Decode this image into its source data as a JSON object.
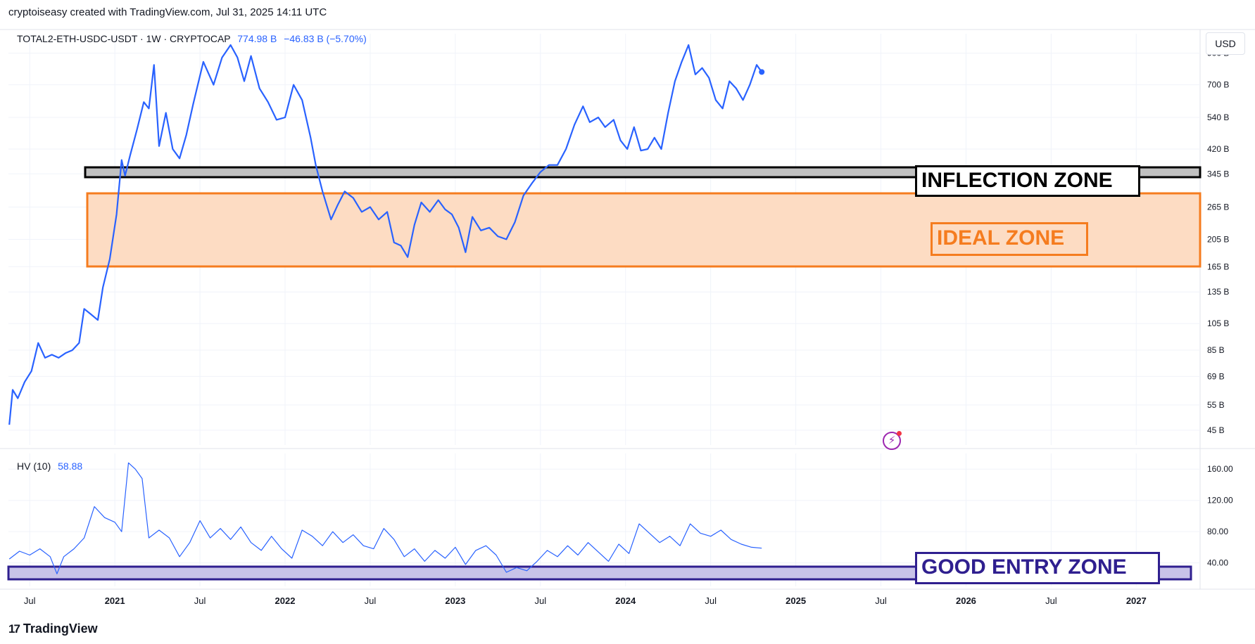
{
  "header": {
    "caption": "cryptoiseasy created with TradingView.com, Jul 31, 2025 14:11 UTC"
  },
  "toolbar": {
    "currency": "USD"
  },
  "main_legend": {
    "symbol": "TOTAL2-ETH-USDC-USDT · 1W · CRYPTOCAP",
    "price": "774.98 B",
    "change": "−46.83 B (−5.70%)"
  },
  "hv_legend": {
    "name": "HV (10)",
    "value": "58.88"
  },
  "zones": {
    "inflection": "INFLECTION ZONE",
    "ideal": "IDEAL ZONE",
    "good_entry": "GOOD ENTRY ZONE"
  },
  "footer": {
    "brand": "TradingView",
    "brand_mark": "17"
  },
  "colors": {
    "line": "#2962ff",
    "inflection_fill": "#c0c0c0",
    "inflection_border": "#000000",
    "ideal_fill": "#fddcc3",
    "ideal_border": "#f57c1f",
    "good_entry_fill": "#c8c3e8",
    "good_entry_border": "#2f1f8f",
    "snapshot_icon": "#9c27b0"
  },
  "chart_data": [
    {
      "type": "line",
      "title": "TOTAL2-ETH-USDC-USDT · 1W · CRYPTOCAP",
      "y_unit": "B",
      "y_scale": "log",
      "ylim": [
        40,
        1050
      ],
      "grid": true,
      "y_ticks": [
        900,
        700,
        540,
        420,
        345,
        265,
        205,
        165,
        135,
        105,
        85,
        69,
        55,
        45
      ],
      "y_tick_labels": [
        "900 B",
        "700 B",
        "540 B",
        "420 B",
        "345 B",
        "265 B",
        "205 B",
        "165 B",
        "135 B",
        "105 B",
        "85 B",
        "69 B",
        "55 B",
        "45 B"
      ],
      "x_ticks": [
        "Jul",
        "2021",
        "Jul",
        "2022",
        "Jul",
        "2023",
        "Jul",
        "2024",
        "Jul",
        "2025",
        "Jul",
        "2026",
        "Jul",
        "2027"
      ],
      "x_tick_dates": [
        2020.5,
        2021.0,
        2021.5,
        2022.0,
        2022.5,
        2023.0,
        2023.5,
        2024.0,
        2024.5,
        2025.0,
        2025.5,
        2026.0,
        2026.5,
        2027.0
      ],
      "xlim": [
        2020.375,
        2027.375
      ],
      "series": [
        {
          "points": [
            [
              2020.38,
              47
            ],
            [
              2020.4,
              62
            ],
            [
              2020.43,
              58
            ],
            [
              2020.47,
              66
            ],
            [
              2020.51,
              72
            ],
            [
              2020.55,
              90
            ],
            [
              2020.59,
              80
            ],
            [
              2020.63,
              82
            ],
            [
              2020.67,
              80
            ],
            [
              2020.71,
              83
            ],
            [
              2020.75,
              85
            ],
            [
              2020.79,
              90
            ],
            [
              2020.82,
              118
            ],
            [
              2020.86,
              113
            ],
            [
              2020.9,
              108
            ],
            [
              2020.93,
              140
            ],
            [
              2020.97,
              175
            ],
            [
              2021.01,
              250
            ],
            [
              2021.04,
              385
            ],
            [
              2021.06,
              340
            ],
            [
              2021.09,
              400
            ],
            [
              2021.13,
              490
            ],
            [
              2021.17,
              610
            ],
            [
              2021.2,
              580
            ],
            [
              2021.23,
              820
            ],
            [
              2021.26,
              430
            ],
            [
              2021.3,
              560
            ],
            [
              2021.34,
              420
            ],
            [
              2021.38,
              390
            ],
            [
              2021.42,
              470
            ],
            [
              2021.46,
              600
            ],
            [
              2021.52,
              840
            ],
            [
              2021.58,
              700
            ],
            [
              2021.63,
              870
            ],
            [
              2021.68,
              960
            ],
            [
              2021.72,
              870
            ],
            [
              2021.76,
              720
            ],
            [
              2021.8,
              880
            ],
            [
              2021.85,
              680
            ],
            [
              2021.9,
              610
            ],
            [
              2021.95,
              530
            ],
            [
              2022.0,
              540
            ],
            [
              2022.05,
              700
            ],
            [
              2022.1,
              620
            ],
            [
              2022.15,
              460
            ],
            [
              2022.18,
              370
            ],
            [
              2022.22,
              300
            ],
            [
              2022.27,
              240
            ],
            [
              2022.31,
              270
            ],
            [
              2022.35,
              300
            ],
            [
              2022.4,
              285
            ],
            [
              2022.45,
              255
            ],
            [
              2022.5,
              265
            ],
            [
              2022.55,
              240
            ],
            [
              2022.6,
              255
            ],
            [
              2022.64,
              200
            ],
            [
              2022.68,
              195
            ],
            [
              2022.72,
              178
            ],
            [
              2022.76,
              230
            ],
            [
              2022.8,
              275
            ],
            [
              2022.85,
              255
            ],
            [
              2022.9,
              280
            ],
            [
              2022.94,
              260
            ],
            [
              2022.98,
              250
            ],
            [
              2023.02,
              225
            ],
            [
              2023.06,
              185
            ],
            [
              2023.1,
              245
            ],
            [
              2023.15,
              220
            ],
            [
              2023.2,
              225
            ],
            [
              2023.25,
              210
            ],
            [
              2023.3,
              205
            ],
            [
              2023.35,
              235
            ],
            [
              2023.4,
              290
            ],
            [
              2023.45,
              320
            ],
            [
              2023.5,
              350
            ],
            [
              2023.55,
              370
            ],
            [
              2023.6,
              370
            ],
            [
              2023.65,
              420
            ],
            [
              2023.7,
              510
            ],
            [
              2023.75,
              590
            ],
            [
              2023.79,
              520
            ],
            [
              2023.84,
              540
            ],
            [
              2023.88,
              500
            ],
            [
              2023.93,
              530
            ],
            [
              2023.97,
              450
            ],
            [
              2024.01,
              420
            ],
            [
              2024.05,
              500
            ],
            [
              2024.09,
              415
            ],
            [
              2024.13,
              420
            ],
            [
              2024.17,
              460
            ],
            [
              2024.21,
              420
            ],
            [
              2024.25,
              560
            ],
            [
              2024.29,
              720
            ],
            [
              2024.33,
              840
            ],
            [
              2024.37,
              960
            ],
            [
              2024.41,
              760
            ],
            [
              2024.45,
              800
            ],
            [
              2024.49,
              740
            ],
            [
              2024.53,
              620
            ],
            [
              2024.57,
              580
            ],
            [
              2024.61,
              720
            ],
            [
              2024.65,
              680
            ],
            [
              2024.69,
              620
            ],
            [
              2024.73,
              700
            ],
            [
              2024.77,
              820
            ],
            [
              2024.8,
              774.98
            ]
          ]
        }
      ],
      "markers": [
        [
          2024.8,
          774.98
        ]
      ]
    },
    {
      "type": "line",
      "title": "HV (10)",
      "ylim": [
        10,
        180
      ],
      "grid": true,
      "y_ticks": [
        160,
        120,
        80,
        40
      ],
      "y_tick_labels": [
        "160.00",
        "120.00",
        "80.00",
        "40.00"
      ],
      "xlim": [
        2020.375,
        2027.375
      ],
      "series": [
        {
          "points": [
            [
              2020.38,
              45
            ],
            [
              2020.44,
              55
            ],
            [
              2020.5,
              50
            ],
            [
              2020.56,
              58
            ],
            [
              2020.62,
              48
            ],
            [
              2020.66,
              26
            ],
            [
              2020.7,
              48
            ],
            [
              2020.76,
              58
            ],
            [
              2020.82,
              72
            ],
            [
              2020.88,
              112
            ],
            [
              2020.94,
              98
            ],
            [
              2021.0,
              92
            ],
            [
              2021.04,
              80
            ],
            [
              2021.08,
              168
            ],
            [
              2021.12,
              160
            ],
            [
              2021.16,
              148
            ],
            [
              2021.2,
              72
            ],
            [
              2021.26,
              82
            ],
            [
              2021.32,
              72
            ],
            [
              2021.38,
              48
            ],
            [
              2021.44,
              66
            ],
            [
              2021.5,
              94
            ],
            [
              2021.56,
              72
            ],
            [
              2021.62,
              84
            ],
            [
              2021.68,
              70
            ],
            [
              2021.74,
              86
            ],
            [
              2021.8,
              66
            ],
            [
              2021.86,
              56
            ],
            [
              2021.92,
              74
            ],
            [
              2021.98,
              58
            ],
            [
              2022.04,
              46
            ],
            [
              2022.1,
              82
            ],
            [
              2022.16,
              74
            ],
            [
              2022.22,
              62
            ],
            [
              2022.28,
              80
            ],
            [
              2022.34,
              66
            ],
            [
              2022.4,
              76
            ],
            [
              2022.46,
              62
            ],
            [
              2022.52,
              58
            ],
            [
              2022.58,
              84
            ],
            [
              2022.64,
              70
            ],
            [
              2022.7,
              48
            ],
            [
              2022.76,
              58
            ],
            [
              2022.82,
              42
            ],
            [
              2022.88,
              56
            ],
            [
              2022.94,
              46
            ],
            [
              2023.0,
              60
            ],
            [
              2023.06,
              38
            ],
            [
              2023.12,
              56
            ],
            [
              2023.18,
              62
            ],
            [
              2023.24,
              50
            ],
            [
              2023.3,
              28
            ],
            [
              2023.36,
              34
            ],
            [
              2023.42,
              30
            ],
            [
              2023.48,
              42
            ],
            [
              2023.54,
              56
            ],
            [
              2023.6,
              48
            ],
            [
              2023.66,
              62
            ],
            [
              2023.72,
              50
            ],
            [
              2023.78,
              66
            ],
            [
              2023.84,
              54
            ],
            [
              2023.9,
              42
            ],
            [
              2023.96,
              64
            ],
            [
              2024.02,
              52
            ],
            [
              2024.08,
              90
            ],
            [
              2024.14,
              78
            ],
            [
              2024.2,
              66
            ],
            [
              2024.26,
              74
            ],
            [
              2024.32,
              62
            ],
            [
              2024.38,
              90
            ],
            [
              2024.44,
              78
            ],
            [
              2024.5,
              74
            ],
            [
              2024.56,
              82
            ],
            [
              2024.62,
              70
            ],
            [
              2024.68,
              64
            ],
            [
              2024.74,
              60
            ],
            [
              2024.8,
              58.88
            ]
          ]
        }
      ]
    }
  ]
}
